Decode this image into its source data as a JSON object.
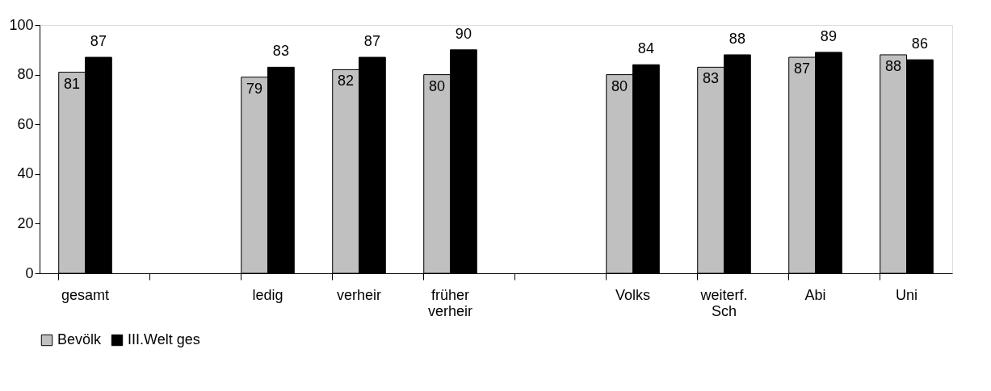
{
  "chart_data": {
    "type": "bar",
    "categories": [
      "gesamt",
      null,
      "ledig",
      "verheir",
      "früher verheir",
      null,
      "Volks",
      "weiterf. Sch",
      "Abi",
      "Uni"
    ],
    "series": [
      {
        "name": "Bevölk",
        "color": "#c0c0c0",
        "values": [
          81,
          null,
          79,
          82,
          80,
          null,
          80,
          83,
          87,
          88
        ]
      },
      {
        "name": "III.Welt ges",
        "color": "#000000",
        "values": [
          87,
          null,
          83,
          87,
          90,
          null,
          84,
          88,
          89,
          86
        ]
      }
    ],
    "ylim": [
      0,
      100
    ],
    "yticks": [
      0,
      20,
      40,
      60,
      80,
      100
    ],
    "grid": false,
    "legend": "bottom",
    "data_labels": true
  }
}
